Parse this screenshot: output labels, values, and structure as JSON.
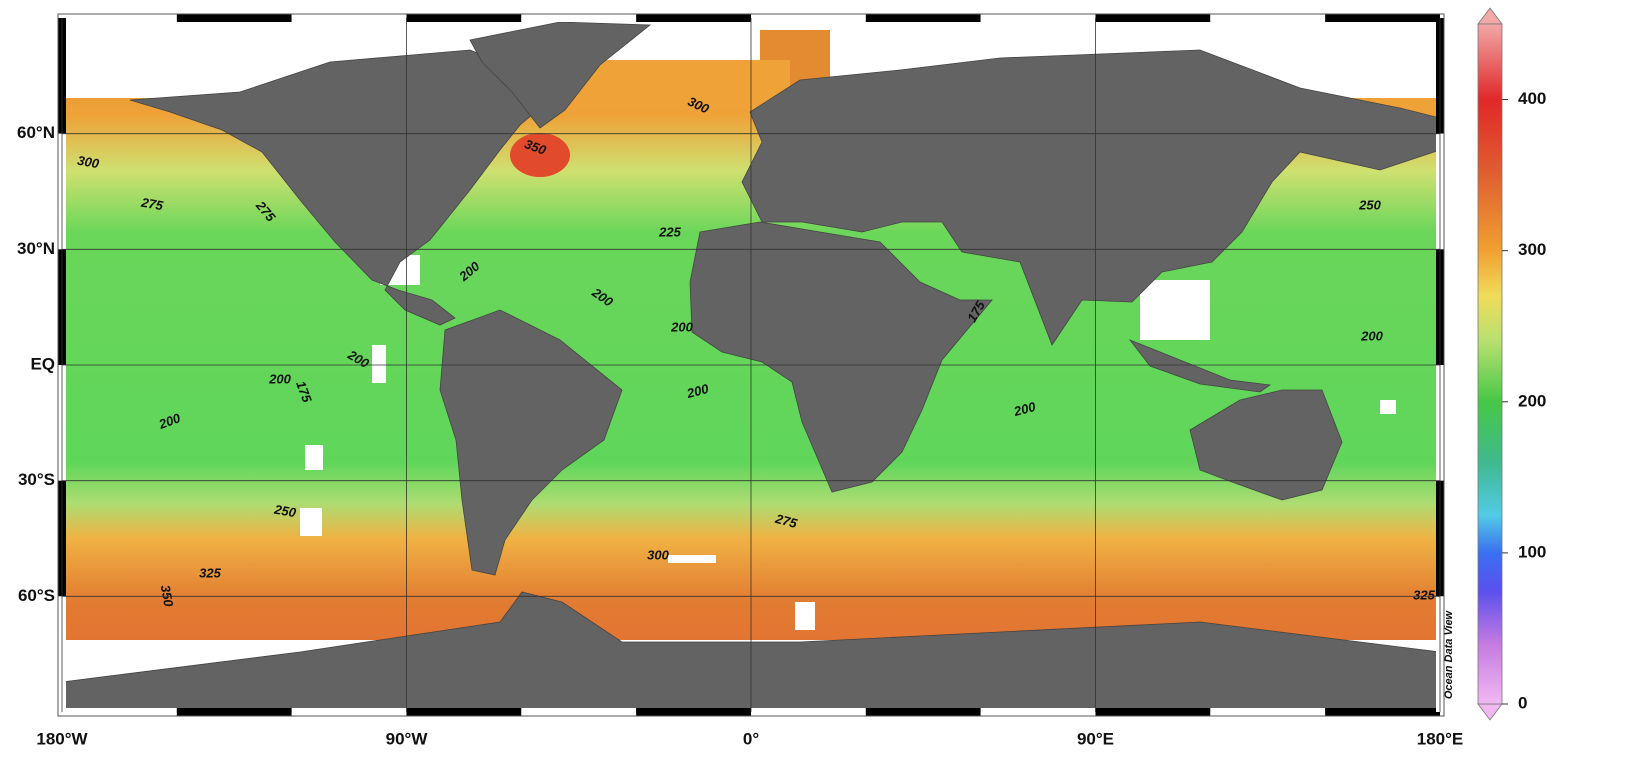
{
  "map": {
    "xlim": [
      -180,
      180
    ],
    "ylim": [
      -90,
      90
    ],
    "xticks": [
      {
        "value": -180,
        "label": "180°W"
      },
      {
        "value": -90,
        "label": "90°W"
      },
      {
        "value": 0,
        "label": "0°"
      },
      {
        "value": 90,
        "label": "90°E"
      },
      {
        "value": 180,
        "label": "180°E"
      }
    ],
    "yticks": [
      {
        "value": 60,
        "label": "60°N"
      },
      {
        "value": 30,
        "label": "30°N"
      },
      {
        "value": 0,
        "label": "EQ"
      },
      {
        "value": -30,
        "label": "30°S"
      },
      {
        "value": -60,
        "label": "60°S"
      }
    ],
    "grid": true,
    "contour_labels": [
      300,
      275,
      275,
      225,
      200,
      200,
      200,
      175,
      200,
      200,
      175,
      200,
      200,
      200,
      200,
      250,
      250,
      275,
      300,
      325,
      350,
      350,
      300,
      325
    ],
    "credit": "Ocean Data View"
  },
  "colorbar": {
    "clim": [
      0,
      450
    ],
    "ticks": [
      0,
      100,
      200,
      300,
      400
    ],
    "colorscale": [
      {
        "value": 0,
        "color": "#f2b8f2"
      },
      {
        "value": 40,
        "color": "#c47ae0"
      },
      {
        "value": 75,
        "color": "#5a50ee"
      },
      {
        "value": 100,
        "color": "#3a70f0"
      },
      {
        "value": 125,
        "color": "#52cbe6"
      },
      {
        "value": 160,
        "color": "#3fb98e"
      },
      {
        "value": 200,
        "color": "#46c846"
      },
      {
        "value": 240,
        "color": "#b8e070"
      },
      {
        "value": 270,
        "color": "#f0dc5a"
      },
      {
        "value": 300,
        "color": "#f0a030"
      },
      {
        "value": 350,
        "color": "#e06030"
      },
      {
        "value": 400,
        "color": "#e02828"
      },
      {
        "value": 450,
        "color": "#f2a8a8"
      }
    ]
  }
}
